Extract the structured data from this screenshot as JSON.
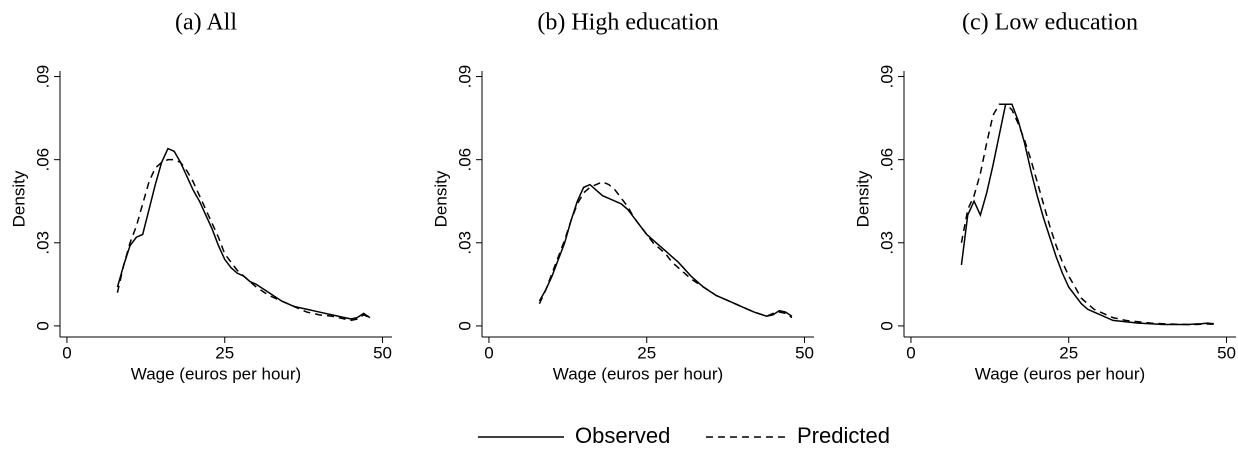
{
  "chart_data": [
    {
      "type": "line",
      "title": "(a) All",
      "xlabel": "Wage (euros per hour)",
      "ylabel": "Density",
      "x": [
        8,
        9,
        10,
        11,
        12,
        13,
        14,
        15,
        16,
        17,
        18,
        19,
        20,
        21,
        22,
        23,
        24,
        25,
        26,
        27,
        28,
        29,
        30,
        32,
        34,
        36,
        38,
        40,
        42,
        44,
        45,
        46,
        47,
        48
      ],
      "series": [
        {
          "name": "Observed",
          "color": "#000000",
          "dashed": false,
          "values": [
            0.014,
            0.022,
            0.029,
            0.032,
            0.033,
            0.042,
            0.051,
            0.059,
            0.064,
            0.063,
            0.059,
            0.054,
            0.049,
            0.045,
            0.04,
            0.035,
            0.029,
            0.024,
            0.021,
            0.019,
            0.018,
            0.016,
            0.015,
            0.012,
            0.009,
            0.007,
            0.006,
            0.005,
            0.004,
            0.003,
            0.0025,
            0.003,
            0.0045,
            0.003
          ]
        },
        {
          "name": "Predicted",
          "color": "#000000",
          "dashed": true,
          "values": [
            0.012,
            0.022,
            0.03,
            0.036,
            0.044,
            0.052,
            0.057,
            0.059,
            0.06,
            0.06,
            0.059,
            0.056,
            0.052,
            0.047,
            0.042,
            0.037,
            0.032,
            0.026,
            0.023,
            0.02,
            0.018,
            0.016,
            0.014,
            0.011,
            0.009,
            0.007,
            0.005,
            0.004,
            0.0035,
            0.0025,
            0.002,
            0.0025,
            0.004,
            0.003
          ]
        }
      ],
      "xlim": [
        -1.1,
        51.5
      ],
      "xticks": [
        0,
        25,
        50
      ],
      "ylim": [
        -0.004,
        0.092
      ],
      "yticks": [
        0,
        {
          "value": 0.03,
          "label": ".03"
        },
        {
          "value": 0.06,
          "label": ".06"
        },
        {
          "value": 0.09,
          "label": ".09"
        }
      ]
    },
    {
      "type": "line",
      "title": "(b) High education",
      "xlabel": "Wage (euros per hour)",
      "ylabel": "Density",
      "x": [
        8,
        9,
        10,
        11,
        12,
        13,
        14,
        15,
        16,
        17,
        18,
        19,
        20,
        21,
        22,
        23,
        24,
        25,
        26,
        27,
        28,
        29,
        30,
        32,
        34,
        36,
        38,
        40,
        42,
        44,
        45,
        46,
        47,
        48
      ],
      "series": [
        {
          "name": "Observed",
          "color": "#000000",
          "dashed": false,
          "values": [
            0.009,
            0.013,
            0.018,
            0.024,
            0.03,
            0.038,
            0.045,
            0.05,
            0.051,
            0.049,
            0.047,
            0.046,
            0.045,
            0.044,
            0.042,
            0.039,
            0.036,
            0.033,
            0.031,
            0.029,
            0.027,
            0.025,
            0.023,
            0.018,
            0.014,
            0.011,
            0.009,
            0.007,
            0.005,
            0.0035,
            0.004,
            0.0055,
            0.005,
            0.0035
          ]
        },
        {
          "name": "Predicted",
          "color": "#000000",
          "dashed": true,
          "values": [
            0.008,
            0.013,
            0.019,
            0.025,
            0.031,
            0.038,
            0.044,
            0.048,
            0.05,
            0.051,
            0.052,
            0.051,
            0.049,
            0.046,
            0.043,
            0.039,
            0.036,
            0.033,
            0.03,
            0.028,
            0.026,
            0.023,
            0.021,
            0.017,
            0.014,
            0.011,
            0.009,
            0.007,
            0.005,
            0.0035,
            0.0045,
            0.005,
            0.0045,
            0.003
          ]
        }
      ],
      "xlim": [
        -1.1,
        51.5
      ],
      "xticks": [
        0,
        25,
        50
      ],
      "ylim": [
        -0.004,
        0.092
      ],
      "yticks": [
        0,
        {
          "value": 0.03,
          "label": ".03"
        },
        {
          "value": 0.06,
          "label": ".06"
        },
        {
          "value": 0.09,
          "label": ".09"
        }
      ]
    },
    {
      "type": "line",
      "title": "(c) Low education",
      "xlabel": "Wage (euros per hour)",
      "ylabel": "Density",
      "x": [
        8,
        9,
        10,
        11,
        12,
        13,
        14,
        15,
        16,
        17,
        18,
        19,
        20,
        21,
        22,
        23,
        24,
        25,
        26,
        27,
        28,
        29,
        30,
        32,
        34,
        36,
        38,
        40,
        42,
        44,
        45,
        46,
        47,
        48
      ],
      "series": [
        {
          "name": "Observed",
          "color": "#000000",
          "dashed": false,
          "values": [
            0.022,
            0.04,
            0.045,
            0.04,
            0.048,
            0.058,
            0.069,
            0.08,
            0.08,
            0.074,
            0.066,
            0.056,
            0.047,
            0.039,
            0.032,
            0.025,
            0.019,
            0.014,
            0.011,
            0.008,
            0.006,
            0.005,
            0.004,
            0.002,
            0.0015,
            0.001,
            0.0008,
            0.0005,
            0.0005,
            0.0005,
            0.0007,
            0.0008,
            0.001,
            0.0008
          ]
        },
        {
          "name": "Predicted",
          "color": "#000000",
          "dashed": true,
          "values": [
            0.03,
            0.042,
            0.047,
            0.055,
            0.066,
            0.076,
            0.08,
            0.08,
            0.078,
            0.073,
            0.067,
            0.06,
            0.052,
            0.044,
            0.036,
            0.029,
            0.023,
            0.018,
            0.014,
            0.01,
            0.008,
            0.006,
            0.005,
            0.003,
            0.002,
            0.0015,
            0.001,
            0.0008,
            0.0006,
            0.0005,
            0.0005,
            0.0006,
            0.0007,
            0.0006
          ]
        }
      ],
      "xlim": [
        -1.1,
        51.5
      ],
      "xticks": [
        0,
        25,
        50
      ],
      "ylim": [
        -0.004,
        0.092
      ],
      "yticks": [
        0,
        {
          "value": 0.03,
          "label": ".03"
        },
        {
          "value": 0.06,
          "label": ".06"
        },
        {
          "value": 0.09,
          "label": ".09"
        }
      ]
    }
  ]
}
